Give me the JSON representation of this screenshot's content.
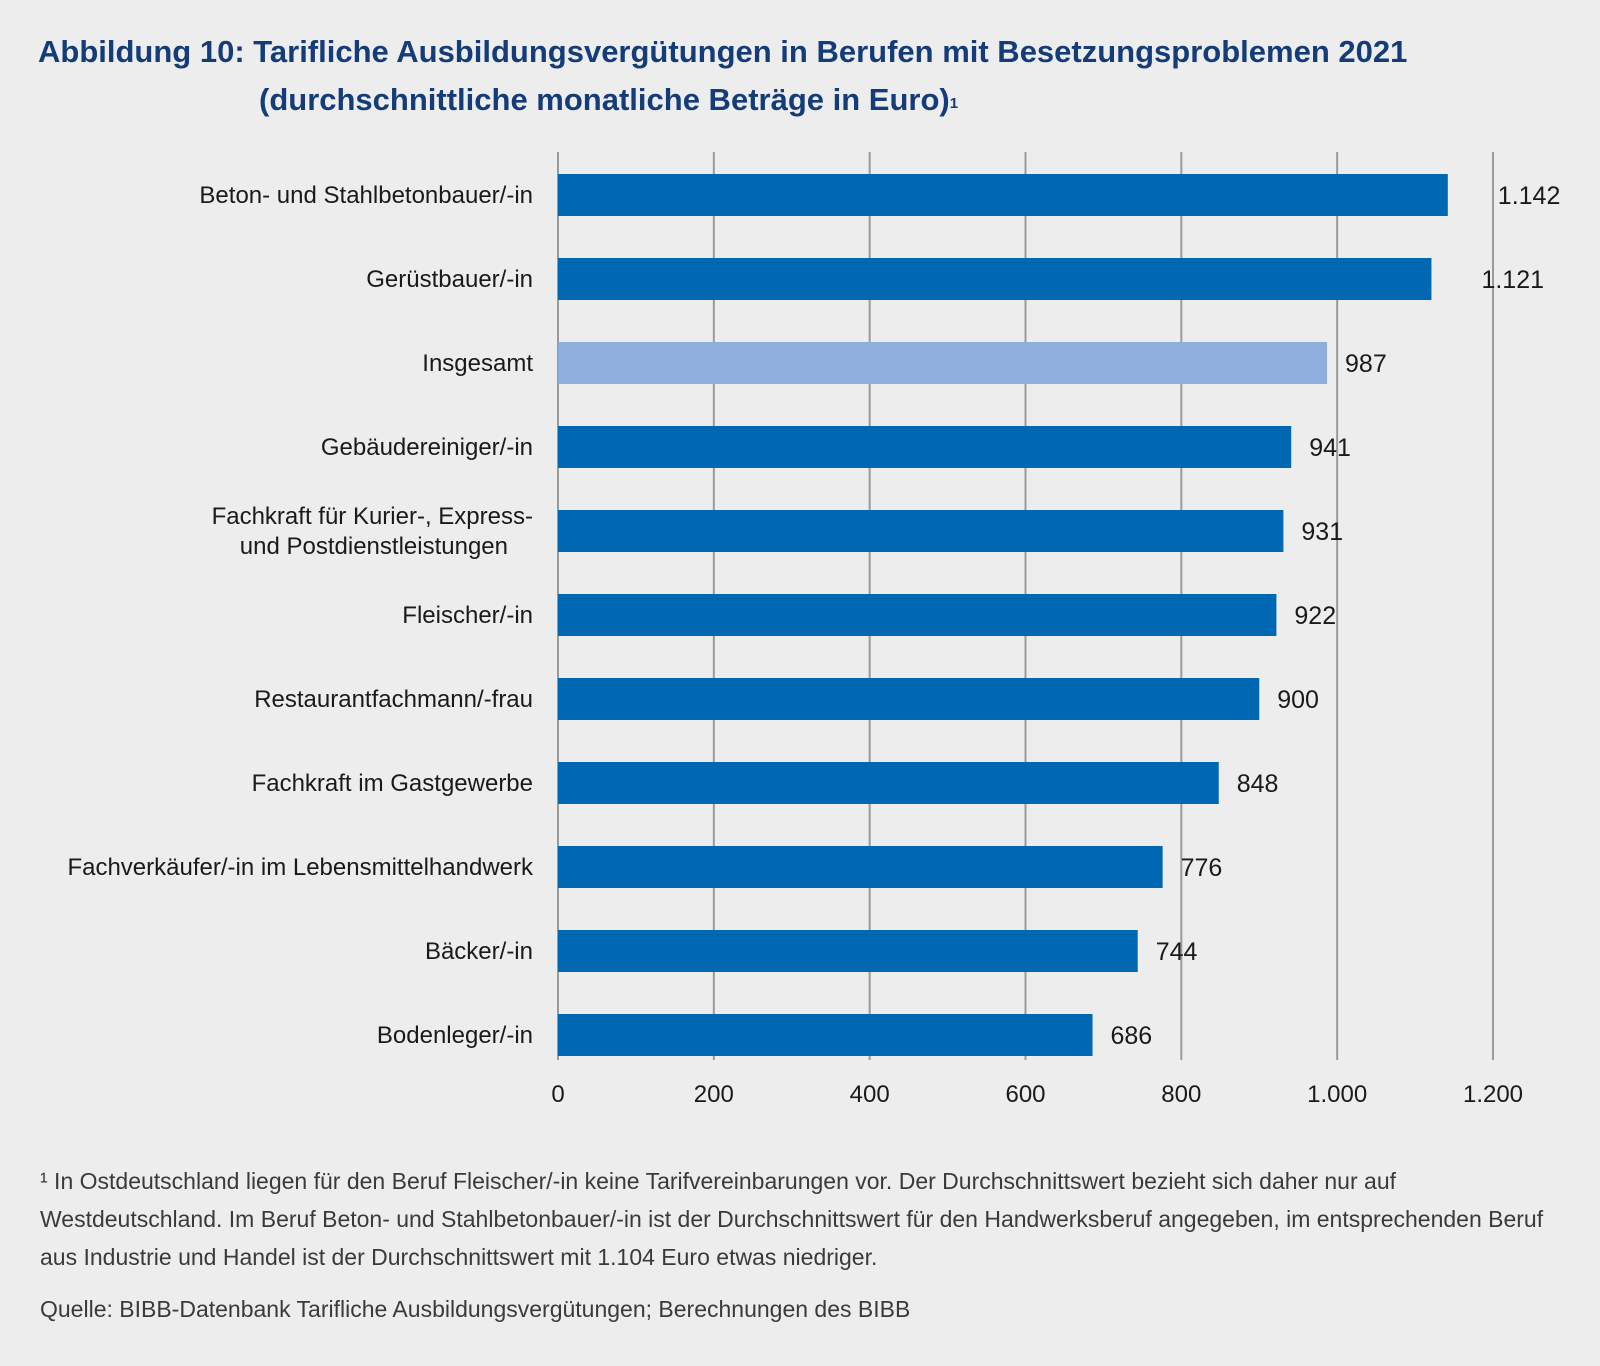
{
  "title": {
    "line1": "Abbildung 10: Tarifliche Ausbildungsvergütungen in Berufen mit Besetzungsproblemen 2021",
    "line2": "(durchschnittliche monatliche Beträge in Euro)",
    "footnote_marker": "1"
  },
  "colors": {
    "bar": "#0068b3",
    "bar_highlight": "#8eaedd",
    "grid": "#9a9a9a",
    "background": "#ededed",
    "title": "#143c78"
  },
  "chart_data": {
    "type": "bar",
    "orientation": "horizontal",
    "categories": [
      [
        "Beton- und Stahlbetonbauer/-in"
      ],
      [
        "Gerüstbauer/-in"
      ],
      [
        "Insgesamt"
      ],
      [
        "Gebäudereiniger/-in"
      ],
      [
        "Fachkraft für Kurier-, Express-",
        "und Postdienstleistungen"
      ],
      [
        "Fleischer/-in"
      ],
      [
        "Restaurantfachmann/-frau"
      ],
      [
        "Fachkraft im Gastgewerbe"
      ],
      [
        "Fachverkäufer/-in im Lebensmittelhandwerk"
      ],
      [
        "Bäcker/-in"
      ],
      [
        "Bodenleger/-in"
      ]
    ],
    "values": [
      1142,
      1121,
      987,
      941,
      931,
      922,
      900,
      848,
      776,
      744,
      686
    ],
    "value_labels": [
      "1.142",
      "1.121",
      "987",
      "941",
      "931",
      "922",
      "900",
      "848",
      "776",
      "744",
      "686"
    ],
    "highlight_index": 2,
    "xlim": [
      0,
      1200
    ],
    "xticks": [
      0,
      200,
      400,
      600,
      800,
      1000,
      1200
    ],
    "xtick_labels": [
      "0",
      "200",
      "400",
      "600",
      "800",
      "1.000",
      "1.200"
    ],
    "grid": true,
    "legend": "none"
  },
  "footnote": "¹ In Ostdeutschland liegen für den Beruf Fleischer/-in keine Tarifvereinbarungen vor. Der Durchschnittswert bezieht sich daher nur auf Westdeutschland. Im Beruf Beton- und Stahlbetonbauer/-in ist der Durchschnittswert für den Handwerksberuf angegeben, im entsprechenden Beruf aus Industrie und Handel ist der Durchschnittswert mit 1.104 Euro etwas niedriger.",
  "source": "Quelle: BIBB-Datenbank Tarifliche Ausbildungsvergütungen; Berechnungen des BIBB"
}
